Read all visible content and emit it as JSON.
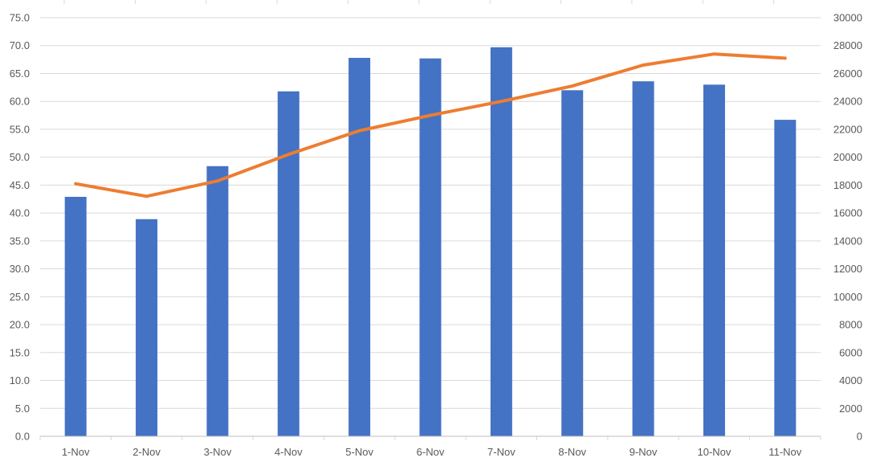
{
  "chart_data": {
    "type": "bar",
    "categories": [
      "1-Nov",
      "2-Nov",
      "3-Nov",
      "4-Nov",
      "5-Nov",
      "6-Nov",
      "7-Nov",
      "8-Nov",
      "9-Nov",
      "10-Nov",
      "11-Nov"
    ],
    "series": [
      {
        "type": "bar",
        "axis": "left",
        "color": "#4472c4",
        "values": [
          42.9,
          38.9,
          48.4,
          61.8,
          67.8,
          67.7,
          69.7,
          62.0,
          63.6,
          63.0,
          56.7
        ]
      },
      {
        "type": "line",
        "axis": "right",
        "color": "#ed7d31",
        "values": [
          18100,
          17200,
          18300,
          20200,
          21900,
          23000,
          24000,
          25100,
          26600,
          27400,
          27100
        ]
      }
    ],
    "y_left": {
      "min": 0,
      "max": 75,
      "step": 5,
      "ticks": [
        "0.0",
        "5.0",
        "10.0",
        "15.0",
        "20.0",
        "25.0",
        "30.0",
        "35.0",
        "40.0",
        "45.0",
        "50.0",
        "55.0",
        "60.0",
        "65.0",
        "70.0",
        "75.0"
      ]
    },
    "y_right": {
      "min": 0,
      "max": 30000,
      "step": 2000,
      "ticks": [
        "0",
        "2000",
        "4000",
        "6000",
        "8000",
        "10000",
        "12000",
        "14000",
        "16000",
        "18000",
        "20000",
        "22000",
        "24000",
        "26000",
        "28000",
        "30000"
      ]
    },
    "grid": true,
    "legend": "none"
  }
}
